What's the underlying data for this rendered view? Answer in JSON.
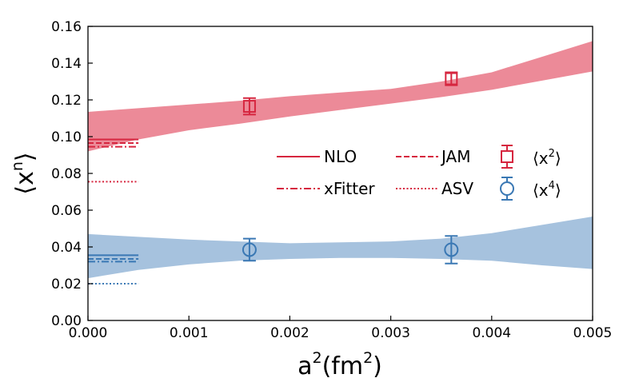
{
  "chart_data": {
    "type": "line",
    "title": "",
    "xlabel": "a",
    "xlabel_sup": "2",
    "xlabel_unit_open": "(fm",
    "xlabel_unit_sup": "2",
    "xlabel_unit_close": ")",
    "ylabel": "⟨x",
    "ylabel_sup": "n",
    "ylabel_close": "⟩",
    "xlim": [
      0,
      0.005
    ],
    "ylim": [
      0,
      0.16
    ],
    "xticks": [
      0,
      0.001,
      0.002,
      0.003,
      0.004,
      0.005
    ],
    "xtick_labels": [
      "0.000",
      "0.001",
      "0.002",
      "0.003",
      "0.004",
      "0.005"
    ],
    "yticks": [
      0,
      0.02,
      0.04,
      0.06,
      0.08,
      0.1,
      0.12,
      0.14,
      0.16
    ],
    "ytick_labels": [
      "0.00",
      "0.02",
      "0.04",
      "0.06",
      "0.08",
      "0.10",
      "0.12",
      "0.14",
      "0.16"
    ],
    "colors": {
      "x2": "#d6263f",
      "x2_band": "#ec8a98",
      "x4": "#3a78b4",
      "x4_band": "#a6c2de"
    },
    "series": [
      {
        "name": "x2",
        "legend_label": "⟨x",
        "legend_sup": "2",
        "legend_close": "⟩",
        "marker": "square",
        "points": [
          {
            "x": 0.0016,
            "y": 0.1165,
            "err": 0.0045
          },
          {
            "x": 0.0036,
            "y": 0.1315,
            "err": 0.0035
          }
        ],
        "band": {
          "x": [
            0,
            0.0005,
            0.001,
            0.0015,
            0.002,
            0.0025,
            0.003,
            0.0035,
            0.004,
            0.0045,
            0.005
          ],
          "lower": [
            0.092,
            0.0985,
            0.1035,
            0.107,
            0.111,
            0.1145,
            0.118,
            0.1215,
            0.1255,
            0.1305,
            0.1355
          ],
          "upper": [
            0.1135,
            0.1155,
            0.1175,
            0.1195,
            0.122,
            0.124,
            0.126,
            0.13,
            0.135,
            0.1435,
            0.152
          ]
        }
      },
      {
        "name": "x4",
        "legend_label": "⟨x",
        "legend_sup": "4",
        "legend_close": "⟩",
        "marker": "circle",
        "points": [
          {
            "x": 0.0016,
            "y": 0.0385,
            "err": 0.006
          },
          {
            "x": 0.0036,
            "y": 0.0385,
            "err": 0.0075
          }
        ],
        "band": {
          "x": [
            0,
            0.0005,
            0.001,
            0.0015,
            0.002,
            0.0025,
            0.003,
            0.0035,
            0.004,
            0.0045,
            0.005
          ],
          "lower": [
            0.023,
            0.0275,
            0.0305,
            0.0325,
            0.0335,
            0.034,
            0.034,
            0.0335,
            0.0325,
            0.03,
            0.028
          ],
          "upper": [
            0.047,
            0.0455,
            0.044,
            0.043,
            0.042,
            0.0425,
            0.043,
            0.0445,
            0.0475,
            0.052,
            0.0565
          ]
        }
      }
    ],
    "reference_lines": [
      {
        "name": "NLO",
        "group": "x2",
        "style": "solid",
        "y": 0.0985
      },
      {
        "name": "JAM",
        "group": "x2",
        "style": "dashed",
        "y": 0.0965
      },
      {
        "name": "xFitter",
        "group": "x2",
        "style": "dashdot",
        "y": 0.0945
      },
      {
        "name": "ASV",
        "group": "x2",
        "style": "dotted",
        "y": 0.0755
      },
      {
        "name": "NLO",
        "group": "x4",
        "style": "solid",
        "y": 0.0355
      },
      {
        "name": "JAM",
        "group": "x4",
        "style": "dashed",
        "y": 0.0335
      },
      {
        "name": "xFitter",
        "group": "x4",
        "style": "dashdot",
        "y": 0.032
      },
      {
        "name": "ASV",
        "group": "x4",
        "style": "dotted",
        "y": 0.02
      }
    ],
    "reference_line_xmax": 0.0005,
    "legend": {
      "placement": "center-right",
      "entries": [
        {
          "label": "NLO",
          "style": "solid"
        },
        {
          "label": "JAM",
          "style": "dashed"
        },
        {
          "label": "xFitter",
          "style": "dashdot"
        },
        {
          "label": "ASV",
          "style": "dotted"
        }
      ]
    }
  }
}
